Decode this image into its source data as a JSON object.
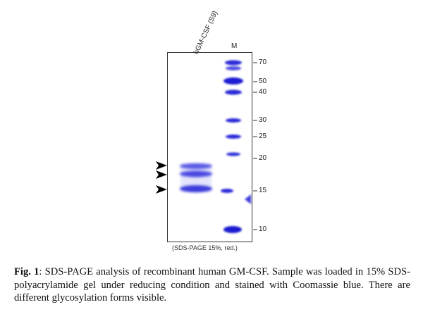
{
  "figure": {
    "lane_labels": {
      "sample": "hGM-CSF (S9)",
      "marker": "M"
    },
    "marker_weights": [
      "70",
      "50",
      "40",
      "30",
      "25",
      "20",
      "15",
      "10"
    ],
    "gel_condition": "(SDS-PAGE 15%, red.)",
    "band_color": "#2a2ad8",
    "arrow_count": 3
  },
  "caption": {
    "label": "Fig. 1",
    "text": ": SDS-PAGE analysis of recombinant human GM-CSF. Sample was loaded in 15% SDS-polyacrylamide gel under reducing condition and stained with Coomassie blue. There are different glycosylation forms visible."
  }
}
